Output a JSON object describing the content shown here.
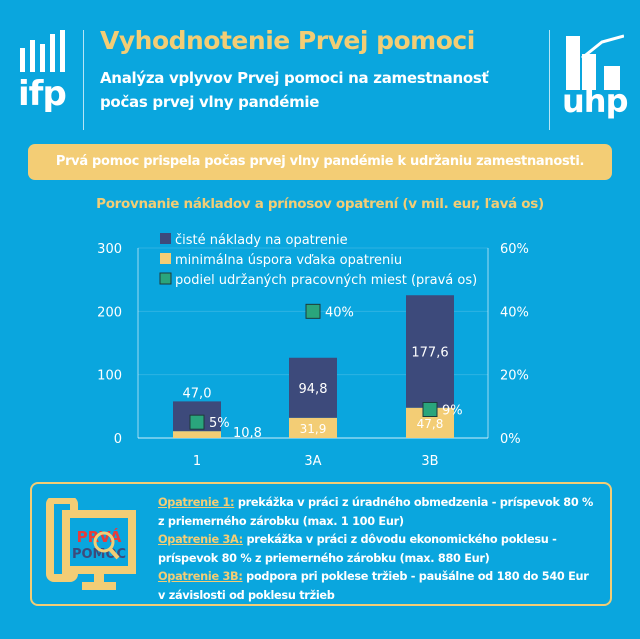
{
  "header": {
    "title": "Vyhodnotenie Prvej pomoci",
    "subtitle": "Analýza vplyvov Prvej pomoci na zamestnanosť počas prvej vlny pandémie",
    "logo_left": "ifp",
    "logo_right": "uhp"
  },
  "banner": "Prvá pomoc prispela počas prvej vlny pandémie k udržaniu zamestnanosti.",
  "colors": {
    "background": "#0aa6de",
    "accent": "#f3cd75",
    "cost": "#3d4a7b",
    "saving": "#f3cd75",
    "share": "#2aa57c"
  },
  "chart_data": {
    "type": "bar",
    "title": "Porovnanie nákladov a prínosov opatrení (v mil. eur, ľavá os)",
    "categories": [
      "1",
      "3A",
      "3B"
    ],
    "series": [
      {
        "name": "čisté náklady na opatrenie",
        "values": [
          47.0,
          94.8,
          177.6
        ],
        "labels": [
          "47,0",
          "94,8",
          "177,6"
        ]
      },
      {
        "name": "minimálna úspora vďaka opatreniu",
        "values": [
          10.8,
          31.9,
          47.8
        ],
        "labels": [
          "10,8",
          "31,9",
          "47,8"
        ]
      },
      {
        "name": "podiel udržaných pracovných miest (pravá os)",
        "values": [
          5,
          40,
          9
        ],
        "labels": [
          "5%",
          "40%",
          "9%"
        ],
        "axis": "right",
        "marker": "square"
      }
    ],
    "stacked": true,
    "ylim": [
      0,
      300
    ],
    "yticks": [
      "0",
      "100",
      "200",
      "300"
    ],
    "y2lim": [
      0,
      60
    ],
    "y2ticks": [
      "0%",
      "20%",
      "40%",
      "60%"
    ],
    "legend": "top-left",
    "grid": true
  },
  "info": {
    "logo_text": "PRVÁ POMOC",
    "items": [
      {
        "label": "Opatrenie 1:",
        "text": " prekážka v práci z úradného obmedzenia - príspevok 80 % z priemerného zárobku (max. 1 100 Eur)"
      },
      {
        "label": "Opatrenie 3A:",
        "text": " prekážka v práci z dôvodu ekonomického poklesu - príspevok 80 % z priemerného zárobku (max. 880 Eur)"
      },
      {
        "label": "Opatrenie 3B:",
        "text": " podpora pri poklese tržieb - paušálne od 180 do 540 Eur v závislosti od poklesu tržieb"
      }
    ]
  }
}
